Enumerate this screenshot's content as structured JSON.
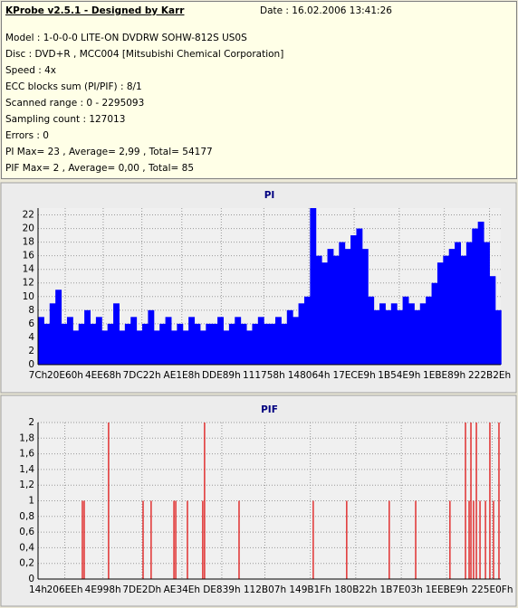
{
  "header": {
    "title": "KProbe v2.5.1 - Designed by Karr",
    "date": "Date : 16.02.2006 13:41:26",
    "lines": [
      "Model : 1-0-0-0 LITE-ON DVDRW SOHW-812S  US0S",
      "Disc : DVD+R , MCC004 [Mitsubishi Chemical Corporation]",
      "Speed : 4x",
      "ECC blocks sum (PI/PIF) : 8/1",
      "Scanned range : 0 - 2295093",
      "Sampling count : 127013",
      "Errors : 0",
      "PI Max= 23 , Average= 2,99 , Total= 54177",
      "PIF Max= 2 , Average= 0,00 , Total= 85"
    ]
  },
  "chart_data": [
    {
      "type": "bar",
      "title": "PI",
      "color": "#0000ff",
      "grid": true,
      "xlim": [
        124,
        2295093
      ],
      "ylim": [
        0,
        23
      ],
      "xticks": [
        {
          "value": 124,
          "label": "7Ch"
        },
        {
          "value": 134752,
          "label": "20E60h"
        },
        {
          "value": 323176,
          "label": "4EE68h"
        },
        {
          "value": 515106,
          "label": "7DC22h"
        },
        {
          "value": 713192,
          "label": "AE1E8h"
        },
        {
          "value": 908937,
          "label": "DDE89h"
        },
        {
          "value": 1120088,
          "label": "111758h"
        },
        {
          "value": 1343588,
          "label": "148064h"
        },
        {
          "value": 1567977,
          "label": "17ECE9h"
        },
        {
          "value": 1791209,
          "label": "1B54E9h"
        },
        {
          "value": 2014857,
          "label": "1EBE89h"
        },
        {
          "value": 2239278,
          "label": "222B2Eh"
        }
      ],
      "yticks": [
        0,
        2,
        4,
        6,
        8,
        10,
        12,
        14,
        16,
        18,
        20,
        22
      ],
      "x": [
        124,
        28824,
        57524,
        86224,
        114924,
        143624,
        172324,
        201024,
        229724,
        258424,
        287124,
        315824,
        344524,
        373224,
        401924,
        430624,
        459324,
        488024,
        516724,
        545424,
        574124,
        602824,
        631524,
        660224,
        688924,
        717624,
        746324,
        775024,
        803724,
        832424,
        861124,
        889824,
        918524,
        947224,
        975924,
        1004624,
        1033324,
        1062024,
        1090724,
        1119424,
        1148124,
        1176824,
        1205524,
        1234224,
        1262924,
        1291624,
        1320324,
        1349024,
        1377724,
        1406424,
        1435124,
        1463824,
        1492524,
        1521224,
        1549924,
        1578624,
        1607324,
        1636024,
        1664724,
        1693424,
        1722124,
        1750824,
        1779524,
        1808224,
        1836924,
        1865624,
        1894324,
        1923024,
        1951724,
        1980424,
        2009124,
        2037824,
        2066524,
        2095224,
        2123924,
        2152624,
        2181324,
        2210024,
        2238724,
        2267424
      ],
      "values": [
        7,
        6,
        9,
        11,
        6,
        7,
        5,
        6,
        8,
        6,
        7,
        5,
        6,
        9,
        5,
        6,
        7,
        5,
        6,
        8,
        5,
        6,
        7,
        5,
        6,
        5,
        7,
        6,
        5,
        6,
        6,
        7,
        5,
        6,
        7,
        6,
        5,
        6,
        7,
        6,
        6,
        7,
        6,
        8,
        7,
        9,
        10,
        23,
        16,
        15,
        17,
        16,
        18,
        17,
        19,
        20,
        17,
        10,
        8,
        9,
        8,
        9,
        8,
        10,
        9,
        8,
        9,
        10,
        12,
        15,
        16,
        17,
        18,
        16,
        18,
        20,
        21,
        18,
        13,
        8
      ]
    },
    {
      "type": "stem",
      "title": "PIF",
      "color": "#dd0000",
      "grid": true,
      "xlim": [
        20,
        2295093
      ],
      "ylim": [
        0,
        2
      ],
      "xticks": [
        {
          "value": 20,
          "label": "14h"
        },
        {
          "value": 132846,
          "label": "206EEh"
        },
        {
          "value": 321944,
          "label": "4E998h"
        },
        {
          "value": 515629,
          "label": "7DE2Dh"
        },
        {
          "value": 713550,
          "label": "AE34Eh"
        },
        {
          "value": 911417,
          "label": "DE839h"
        },
        {
          "value": 1125127,
          "label": "112B07h"
        },
        {
          "value": 1350431,
          "label": "149B1Fh"
        },
        {
          "value": 1575714,
          "label": "180B22h"
        },
        {
          "value": 1801731,
          "label": "1B7E03h"
        },
        {
          "value": 2026473,
          "label": "1EEBE9h"
        },
        {
          "value": 2252303,
          "label": "225E0Fh"
        }
      ],
      "yticks": [
        0,
        {
          "value": 0.2,
          "label": "0,2"
        },
        {
          "value": 0.4,
          "label": "0,4"
        },
        {
          "value": 0.6,
          "label": "0,6"
        },
        {
          "value": 0.8,
          "label": "0,8"
        },
        1,
        {
          "value": 1.2,
          "label": "1,2"
        },
        {
          "value": 1.4,
          "label": "1,4"
        },
        {
          "value": 1.6,
          "label": "1,6"
        },
        {
          "value": 1.8,
          "label": "1,8"
        },
        2
      ],
      "x": [
        220000,
        229000,
        350000,
        521000,
        561000,
        674000,
        683000,
        741000,
        817000,
        826000,
        997000,
        1365000,
        1531000,
        1742000,
        1873000,
        2043000,
        2120000,
        2138000,
        2147000,
        2160000,
        2174000,
        2192000,
        2219000,
        2241000,
        2259000,
        2286000
      ],
      "values": [
        1,
        1,
        2,
        1,
        1,
        1,
        1,
        1,
        1,
        2,
        1,
        1,
        1,
        1,
        1,
        1,
        2,
        1,
        2,
        1,
        2,
        1,
        1,
        2,
        1,
        2
      ]
    }
  ]
}
